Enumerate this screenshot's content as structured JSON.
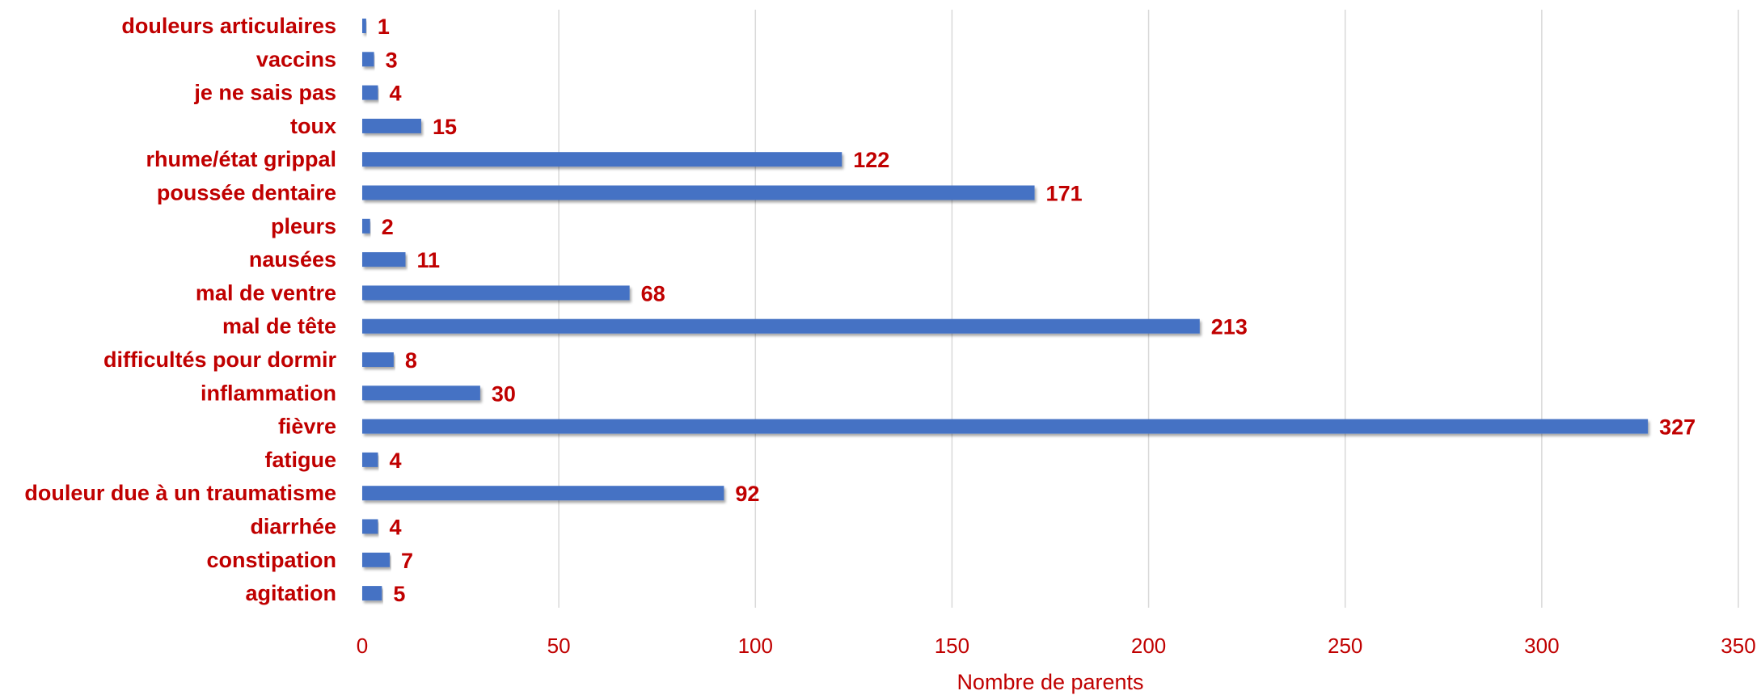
{
  "chart_data": {
    "type": "bar",
    "orientation": "horizontal",
    "categories": [
      "douleurs articulaires",
      "vaccins",
      "je ne sais pas",
      "toux",
      "rhume/état grippal",
      "poussée dentaire",
      "pleurs",
      "nausées",
      "mal de ventre",
      "mal de tête",
      "difficultés pour dormir",
      "inflammation",
      "fièvre",
      "fatigue",
      "douleur due à un traumatisme",
      "diarrhée",
      "constipation",
      "agitation"
    ],
    "values": [
      1,
      3,
      4,
      15,
      122,
      171,
      2,
      11,
      68,
      213,
      8,
      30,
      327,
      4,
      92,
      4,
      7,
      5
    ],
    "xlabel": "Nombre de parents",
    "ylabel": "",
    "xlim": [
      0,
      350
    ],
    "xticks": [
      0,
      50,
      100,
      150,
      200,
      250,
      300,
      350
    ],
    "grid": true,
    "data_labels": true,
    "colors": {
      "bar": "#4472C4",
      "text": "#C00000",
      "grid": "#D9D9D9"
    }
  }
}
